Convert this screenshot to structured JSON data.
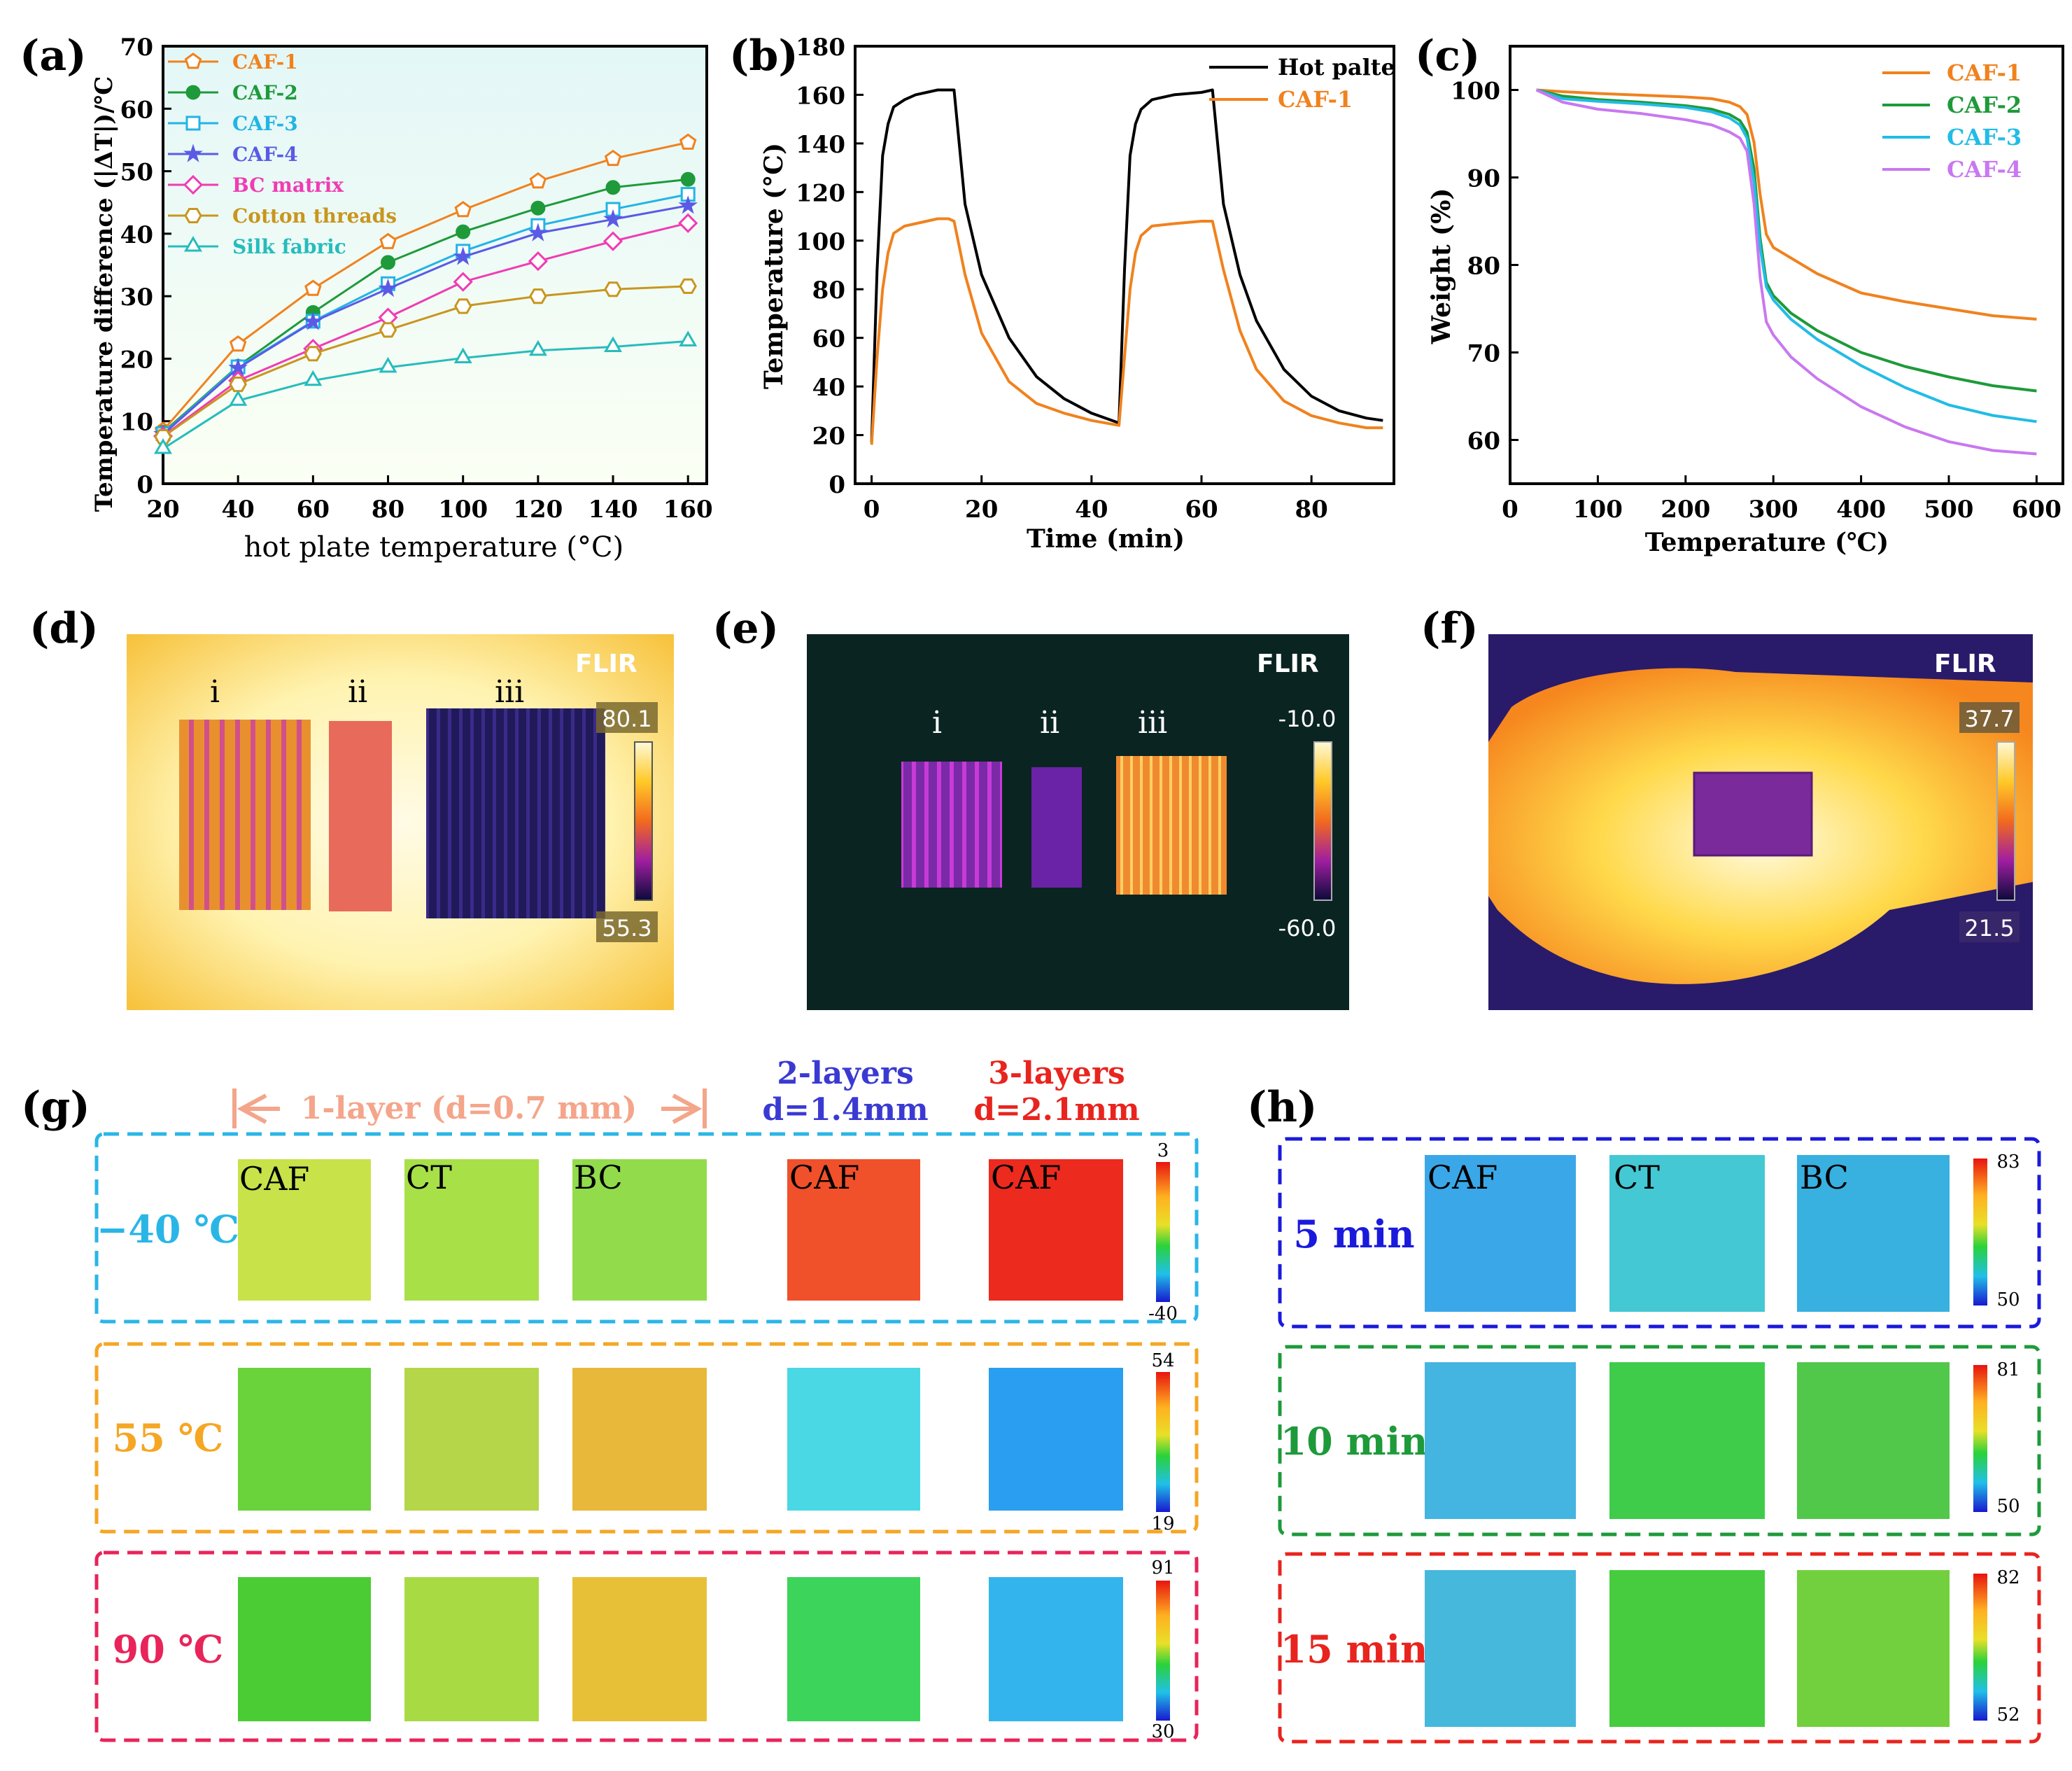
{
  "panels": {
    "a": {
      "label": "(a)"
    },
    "b": {
      "label": "(b)"
    },
    "c": {
      "label": "(c)"
    },
    "d": {
      "label": "(d)",
      "samples": [
        "i",
        "ii",
        "iii"
      ],
      "brand": "FLIR",
      "scale_max": "80.1",
      "scale_min": "55.3"
    },
    "e": {
      "label": "(e)",
      "samples": [
        "i",
        "ii",
        "iii"
      ],
      "brand": "FLIR",
      "scale_max": "-10.0",
      "scale_min": "-60.0"
    },
    "f": {
      "label": "(f)",
      "brand": "FLIR",
      "scale_max": "37.7",
      "scale_min": "21.5"
    },
    "g": {
      "label": "(g)",
      "one_layer": "1-layer (d=0.7 mm)",
      "two_layers_title": "2-layers",
      "two_layers_d": "d=1.4mm",
      "three_layers_title": "3-layers",
      "three_layers_d": "d=2.1mm",
      "rows": [
        {
          "temp": "−40 ℃",
          "color": "#29b6e6",
          "scale_max": "3",
          "scale_min": "-40",
          "labels": [
            "CAF",
            "CT",
            "BC",
            "CAF",
            "CAF"
          ]
        },
        {
          "temp": "55 ℃",
          "color": "#f5a623",
          "scale_max": "54",
          "scale_min": "19"
        },
        {
          "temp": "90 ℃",
          "color": "#e8245a",
          "scale_max": "91",
          "scale_min": "30"
        }
      ]
    },
    "h": {
      "label": "(h)",
      "rows": [
        {
          "time": "5 min",
          "color": "#1a1adc",
          "scale_max": "83",
          "scale_min": "50",
          "labels": [
            "CAF",
            "CT",
            "BC"
          ]
        },
        {
          "time": "10 min",
          "color": "#1e9a3a",
          "scale_max": "81",
          "scale_min": "50"
        },
        {
          "time": "15 min",
          "color": "#e8241e",
          "scale_max": "82",
          "scale_min": "52"
        }
      ]
    }
  },
  "chart_data": [
    {
      "id": "a",
      "type": "line",
      "title": "",
      "xlabel": "hot plate temperature (°C)",
      "ylabel": "Temperature difference  (|ΔT|)/℃",
      "x": [
        20,
        40,
        60,
        80,
        100,
        120,
        140,
        160
      ],
      "xlim": [
        20,
        165
      ],
      "ylim": [
        0,
        70
      ],
      "xticks": [
        "20",
        "40",
        "60",
        "80",
        "100",
        "120",
        "140",
        "160"
      ],
      "yticks": [
        "0",
        "10",
        "20",
        "30",
        "40",
        "50",
        "60",
        "70"
      ],
      "legend_position": "top-left",
      "series": [
        {
          "name": "CAF-1",
          "color": "#f0821e",
          "marker": "pentagon",
          "values": [
            8.5,
            22.3,
            31.2,
            38.7,
            43.8,
            48.4,
            52.0,
            54.6
          ]
        },
        {
          "name": "CAF-2",
          "color": "#1e9a3a",
          "marker": "circle",
          "values": [
            8.2,
            18.8,
            27.4,
            35.4,
            40.3,
            44.1,
            47.4,
            48.7
          ]
        },
        {
          "name": "CAF-3",
          "color": "#22b4e6",
          "marker": "square",
          "values": [
            8.0,
            18.7,
            26.0,
            32.0,
            37.2,
            41.3,
            43.9,
            46.3
          ]
        },
        {
          "name": "CAF-4",
          "color": "#5a5ae6",
          "marker": "star",
          "values": [
            7.9,
            18.5,
            25.9,
            31.2,
            36.3,
            40.1,
            42.3,
            44.5
          ]
        },
        {
          "name": "BC matrix",
          "color": "#f03cb4",
          "marker": "diamond",
          "values": [
            7.6,
            16.5,
            21.6,
            26.6,
            32.3,
            35.6,
            38.8,
            41.7
          ]
        },
        {
          "name": "Cotton threads",
          "color": "#c8961e",
          "marker": "hexagon",
          "values": [
            7.5,
            15.9,
            20.8,
            24.6,
            28.4,
            30.0,
            31.1,
            31.6
          ]
        },
        {
          "name": "Silk fabric",
          "color": "#26bcbc",
          "marker": "triangle",
          "values": [
            5.6,
            13.3,
            16.5,
            18.6,
            20.1,
            21.3,
            21.9,
            22.8
          ]
        }
      ]
    },
    {
      "id": "b",
      "type": "line",
      "title": "",
      "xlabel": "Time (min)",
      "ylabel": "Temperature (°C)",
      "xlim": [
        -3,
        95
      ],
      "ylim": [
        0,
        180
      ],
      "xticks": [
        "0",
        "20",
        "40",
        "60",
        "80"
      ],
      "yticks": [
        "0",
        "20",
        "40",
        "60",
        "80",
        "100",
        "120",
        "140",
        "160",
        "180"
      ],
      "legend_position": "top-right",
      "series": [
        {
          "name": "Hot palte",
          "color": "#000000",
          "x": [
            0,
            1,
            2,
            3,
            4,
            6,
            8,
            10,
            12,
            14,
            15,
            17,
            20,
            25,
            30,
            35,
            40,
            45,
            46,
            47,
            48,
            49,
            51,
            55,
            60,
            62,
            64,
            67,
            70,
            75,
            80,
            85,
            90,
            93
          ],
          "y": [
            17,
            88,
            135,
            148,
            155,
            158,
            160,
            161,
            162,
            162,
            162,
            115,
            86,
            60,
            44,
            35,
            29,
            25,
            88,
            135,
            148,
            154,
            158,
            160,
            161,
            162,
            115,
            86,
            67,
            47,
            36,
            30,
            27,
            26
          ]
        },
        {
          "name": "CAF-1",
          "color": "#f0821e",
          "x": [
            0,
            1,
            2,
            3,
            4,
            6,
            8,
            10,
            12,
            14,
            15,
            17,
            20,
            25,
            30,
            35,
            40,
            45,
            46,
            47,
            48,
            49,
            51,
            55,
            60,
            62,
            64,
            67,
            70,
            75,
            80,
            85,
            90,
            93
          ],
          "y": [
            16,
            52,
            80,
            95,
            103,
            106,
            107,
            108,
            109,
            109,
            108,
            86,
            62,
            42,
            33,
            29,
            26,
            24,
            52,
            80,
            95,
            102,
            106,
            107,
            108,
            108,
            88,
            63,
            47,
            34,
            28,
            25,
            23,
            23
          ]
        }
      ]
    },
    {
      "id": "c",
      "type": "line",
      "title": "",
      "xlabel": "Temperature (℃)",
      "ylabel": "Weight (%)",
      "xlim": [
        0,
        630
      ],
      "ylim": [
        55,
        105
      ],
      "xticks": [
        "0",
        "100",
        "200",
        "300",
        "400",
        "500",
        "600"
      ],
      "yticks": [
        "60",
        "70",
        "80",
        "90",
        "100"
      ],
      "legend_position": "top-right",
      "series": [
        {
          "name": "CAF-1",
          "color": "#f0821e",
          "x": [
            30,
            60,
            100,
            150,
            200,
            230,
            250,
            262,
            270,
            278,
            285,
            292,
            300,
            320,
            350,
            400,
            450,
            500,
            550,
            600
          ],
          "y": [
            100,
            99.8,
            99.6,
            99.4,
            99.2,
            99.0,
            98.6,
            98.1,
            97.2,
            94.0,
            88.0,
            83.5,
            82.0,
            80.8,
            79.0,
            76.8,
            75.8,
            75.0,
            74.2,
            73.8
          ]
        },
        {
          "name": "CAF-2",
          "color": "#1e9a3a",
          "x": [
            30,
            60,
            100,
            150,
            200,
            230,
            250,
            262,
            270,
            278,
            285,
            292,
            300,
            320,
            350,
            400,
            450,
            500,
            550,
            600
          ],
          "y": [
            100,
            99.3,
            98.9,
            98.6,
            98.2,
            97.8,
            97.2,
            96.5,
            95.2,
            91.0,
            83.0,
            78.0,
            76.5,
            74.5,
            72.5,
            70.0,
            68.4,
            67.2,
            66.2,
            65.6
          ]
        },
        {
          "name": "CAF-3",
          "color": "#22bce6",
          "x": [
            30,
            60,
            100,
            150,
            200,
            230,
            250,
            262,
            270,
            278,
            285,
            292,
            300,
            320,
            350,
            400,
            450,
            500,
            550,
            600
          ],
          "y": [
            100,
            99.0,
            98.7,
            98.4,
            98.0,
            97.5,
            96.8,
            96.0,
            94.5,
            89.5,
            82.0,
            77.5,
            76.0,
            73.8,
            71.5,
            68.5,
            66.0,
            64.0,
            62.8,
            62.1
          ]
        },
        {
          "name": "CAF-4",
          "color": "#c878f0",
          "x": [
            30,
            60,
            100,
            150,
            200,
            230,
            250,
            262,
            270,
            278,
            285,
            292,
            300,
            320,
            350,
            400,
            450,
            500,
            550,
            600
          ],
          "y": [
            100,
            98.6,
            97.8,
            97.3,
            96.6,
            96.0,
            95.2,
            94.5,
            93.0,
            87.0,
            78.5,
            73.5,
            72.0,
            69.5,
            67.0,
            63.8,
            61.5,
            59.8,
            58.8,
            58.4
          ]
        }
      ]
    }
  ]
}
